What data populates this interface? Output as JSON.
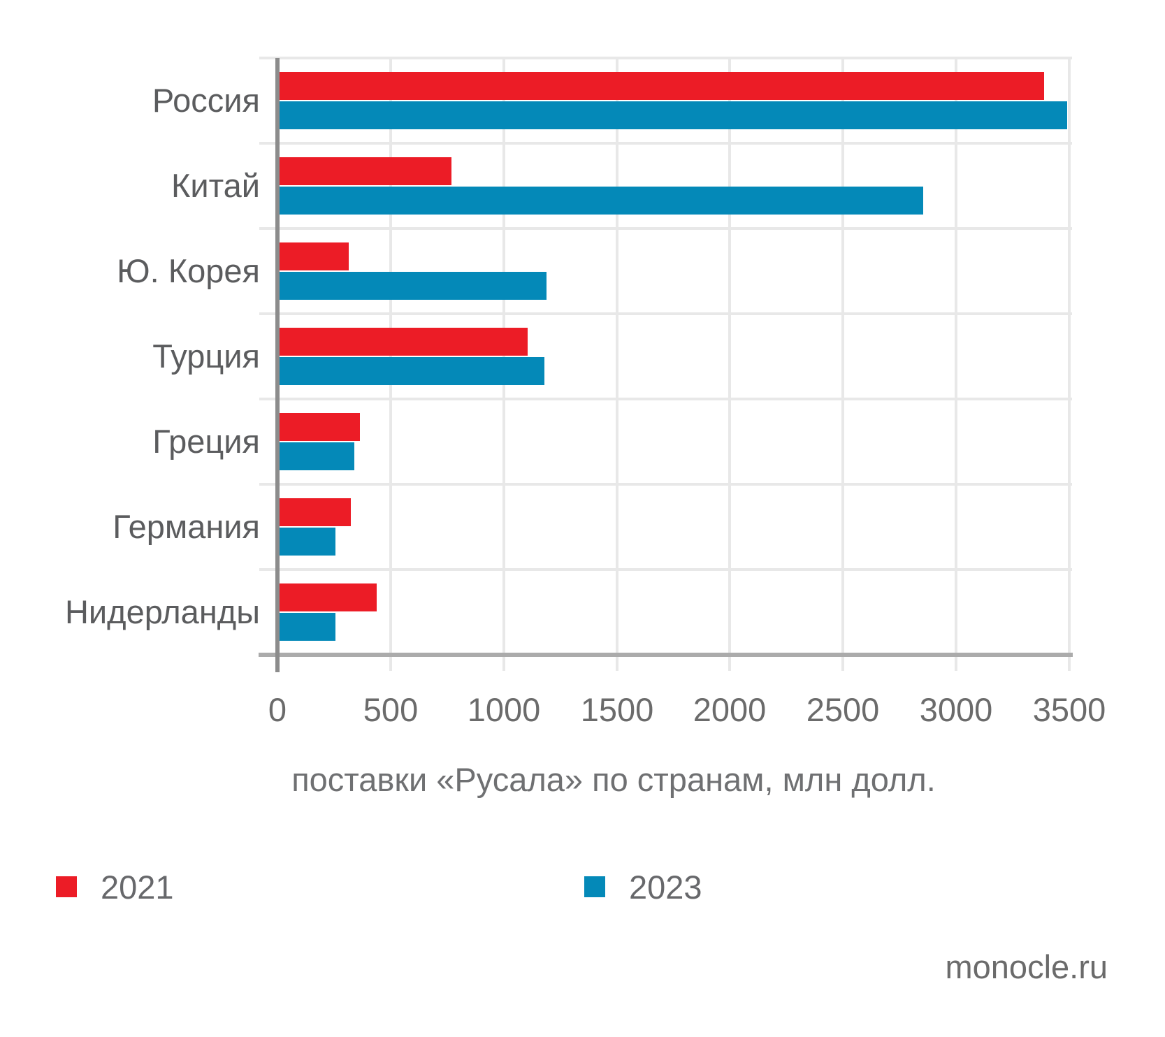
{
  "chart_data": {
    "type": "bar",
    "orientation": "horizontal",
    "title": "поставки «Русала» по странам, млн долл.",
    "categories": [
      "Россия",
      "Китай",
      "Ю. Корея",
      "Турция",
      "Греция",
      "Германия",
      "Нидерланды"
    ],
    "series": [
      {
        "name": "2021",
        "color": "#ec1c26",
        "values": [
          3390,
          770,
          315,
          1105,
          365,
          325,
          440
        ]
      },
      {
        "name": "2023",
        "color": "#0489b8",
        "values": [
          3490,
          2855,
          1190,
          1180,
          340,
          255,
          255
        ]
      }
    ],
    "x_ticks": [
      0,
      500,
      1000,
      1500,
      2000,
      2500,
      3000,
      3500
    ],
    "xlim": [
      0,
      3500
    ],
    "grid": true,
    "legend_position": "bottom"
  },
  "footer": {
    "source": "monocle.ru"
  }
}
